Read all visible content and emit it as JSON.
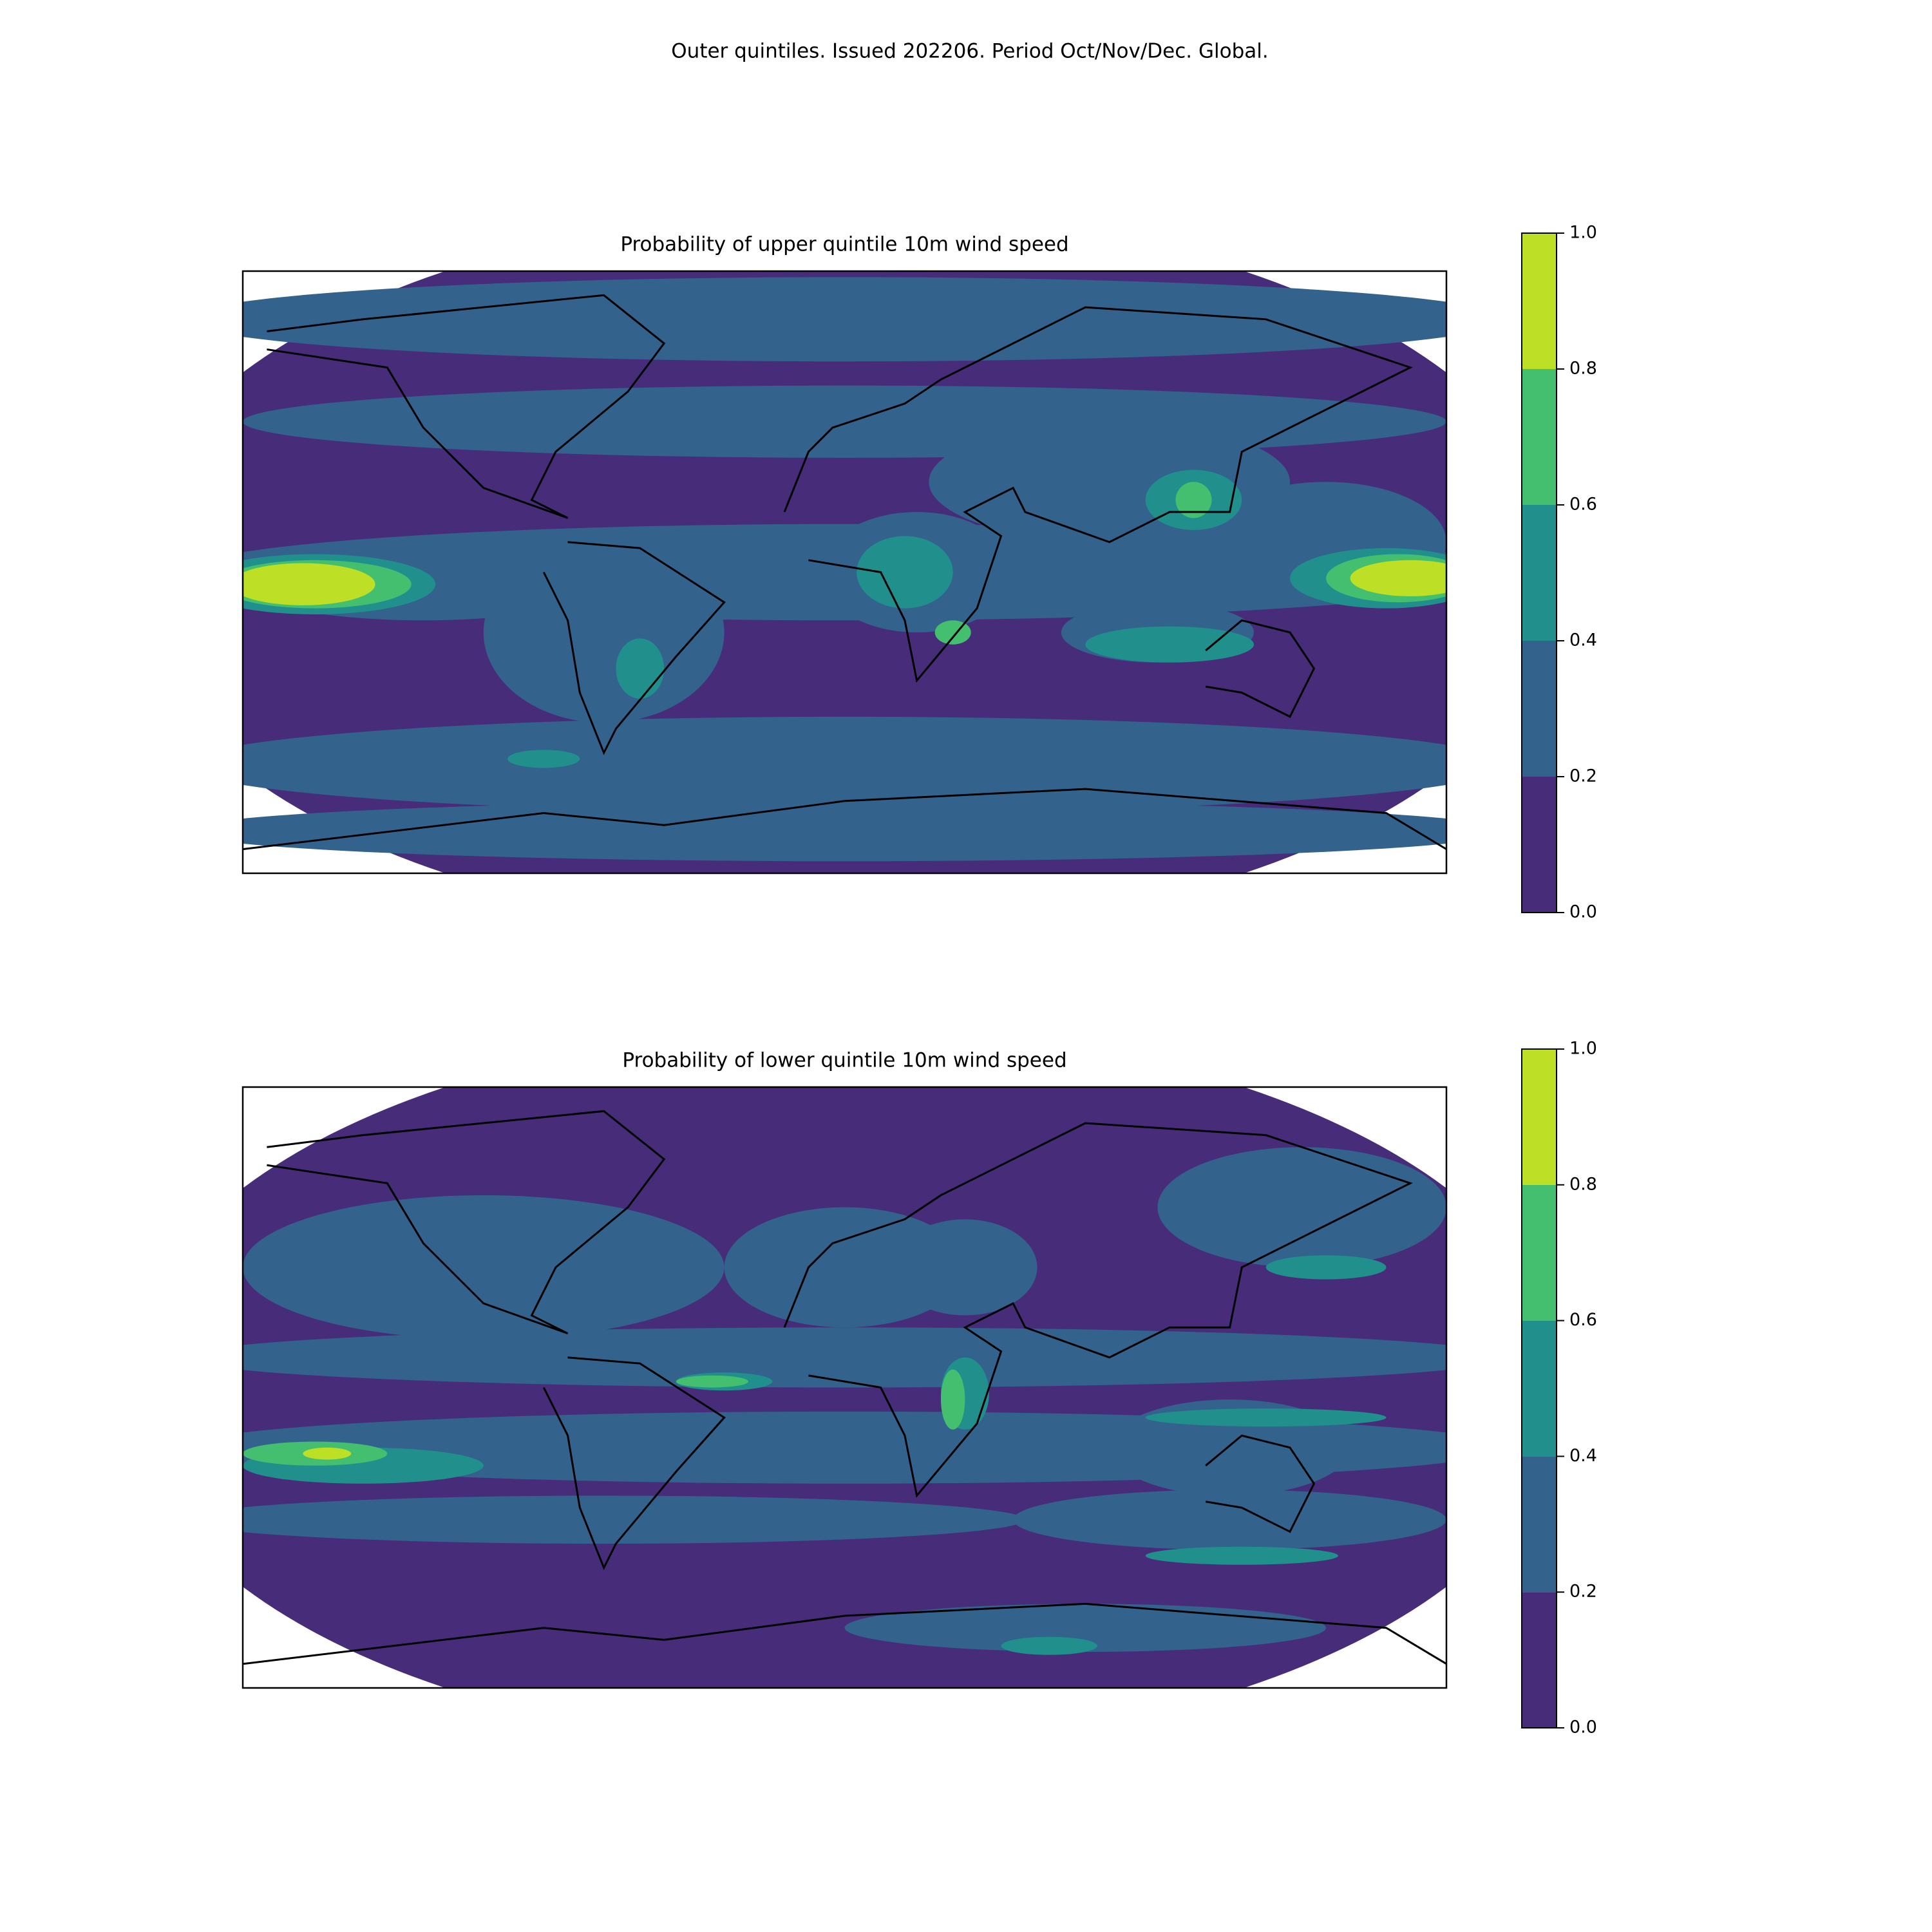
{
  "title": "Outer quintiles. Issued 202206. Period Oct/Nov/Dec. Global.",
  "chart_data": [
    {
      "type": "contour",
      "title": "Probability of upper quintile 10m wind speed",
      "ylim": [
        0,
        1
      ],
      "yticks": [
        0.0,
        0.2,
        0.4,
        0.6,
        0.8,
        1.0
      ],
      "colors": [
        "#472c7a",
        "#33628d",
        "#21908d",
        "#44bf70",
        "#bddf26"
      ]
    },
    {
      "type": "contour",
      "title": "Probability of lower quintile 10m wind speed",
      "ylim": [
        0,
        1
      ],
      "yticks": [
        0.0,
        0.2,
        0.4,
        0.6,
        0.8,
        1.0
      ],
      "colors": [
        "#472c7a",
        "#33628d",
        "#21908d",
        "#44bf70",
        "#bddf26"
      ]
    }
  ]
}
